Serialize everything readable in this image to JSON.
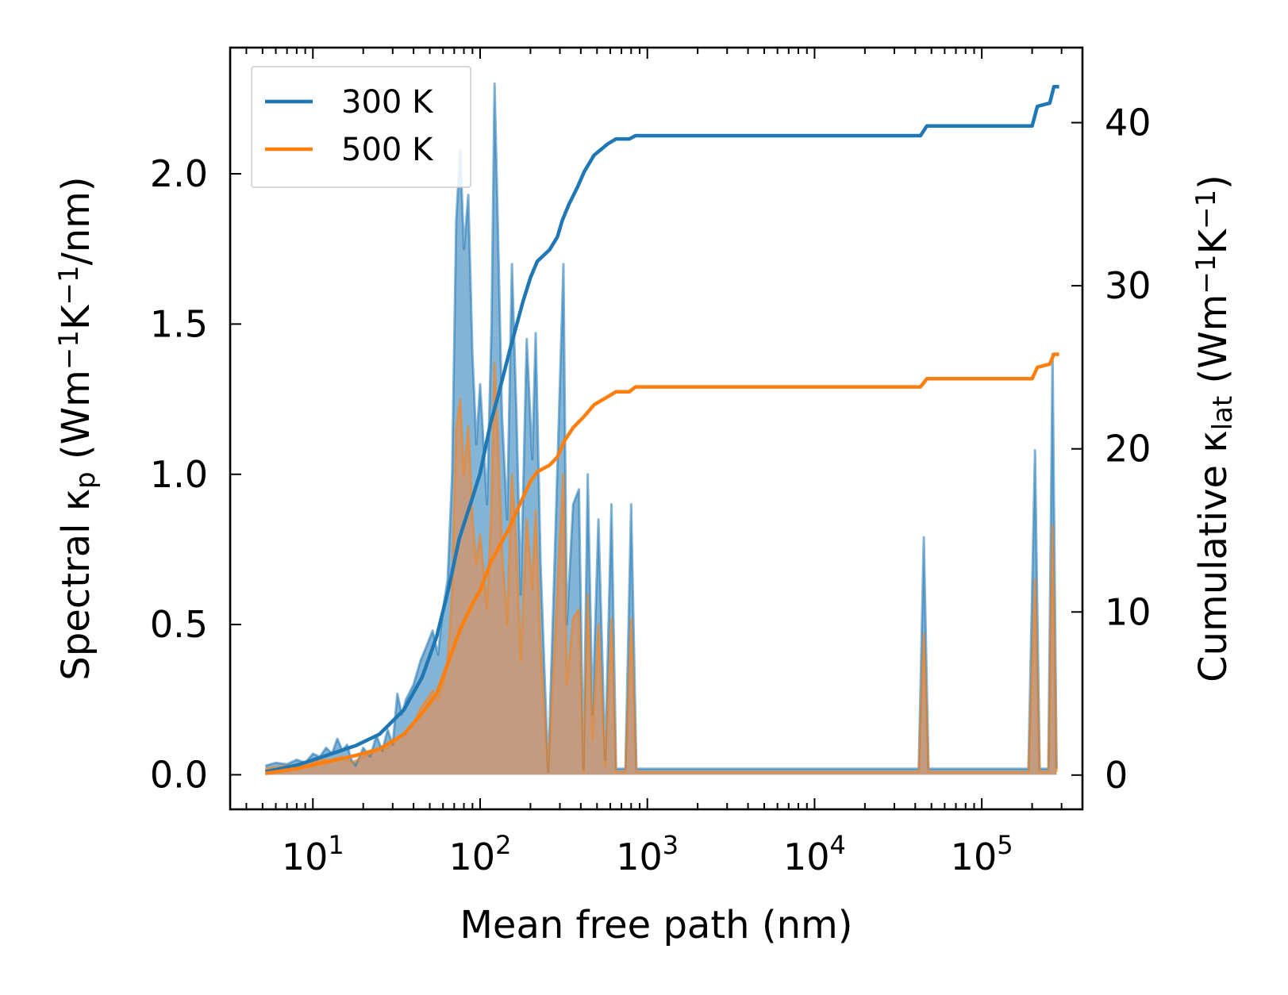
{
  "chart_data": {
    "type": "line",
    "xlabel": "Mean free path (nm)",
    "xscale": "log",
    "xlim": [
      3.2,
      400000
    ],
    "x_ticks": [
      {
        "value": 10,
        "base": "10",
        "exp": "1"
      },
      {
        "value": 100,
        "base": "10",
        "exp": "2"
      },
      {
        "value": 1000,
        "base": "10",
        "exp": "3"
      },
      {
        "value": 10000,
        "base": "10",
        "exp": "4"
      },
      {
        "value": 100000,
        "base": "10",
        "exp": "5"
      }
    ],
    "left_axis": {
      "label_parts": [
        "Spectral κ",
        "p",
        " (Wm",
        "−1",
        "K",
        "−1",
        "/nm)"
      ],
      "ylim": [
        -0.115,
        2.42
      ],
      "ticks": [
        "0.0",
        "0.5",
        "1.0",
        "1.5",
        "2.0"
      ]
    },
    "right_axis": {
      "label_parts": [
        "Cumulative κ",
        "lat",
        " (Wm",
        "−1",
        "K",
        "−1",
        ")"
      ],
      "ylim": [
        -2.1,
        44.6
      ],
      "ticks": [
        "0",
        "10",
        "20",
        "30",
        "40"
      ]
    },
    "legend": {
      "position": "top-left",
      "entries": [
        {
          "label": "300 K",
          "color": "#1f77b4"
        },
        {
          "label": "500 K",
          "color": "#ff7f0e"
        }
      ]
    },
    "series": [
      {
        "name": "300 K",
        "color": "#1f77b4",
        "fill_color": "#1f77b4",
        "axis_spectral": [
          [
            5.2,
            0.03
          ],
          [
            6,
            0.04
          ],
          [
            7,
            0.035
          ],
          [
            8,
            0.05
          ],
          [
            9,
            0.04
          ],
          [
            10,
            0.07
          ],
          [
            11,
            0.06
          ],
          [
            12,
            0.09
          ],
          [
            13,
            0.07
          ],
          [
            14,
            0.12
          ],
          [
            15,
            0.08
          ],
          [
            16,
            0.1
          ],
          [
            17,
            0.05
          ],
          [
            18,
            0.03
          ],
          [
            20,
            0.09
          ],
          [
            22,
            0.06
          ],
          [
            24,
            0.13
          ],
          [
            26,
            0.08
          ],
          [
            28,
            0.15
          ],
          [
            30,
            0.1
          ],
          [
            32,
            0.27
          ],
          [
            34,
            0.2
          ],
          [
            36,
            0.25
          ],
          [
            40,
            0.3
          ],
          [
            44,
            0.38
          ],
          [
            48,
            0.43
          ],
          [
            52,
            0.48
          ],
          [
            56,
            0.4
          ],
          [
            60,
            0.55
          ],
          [
            64,
            0.65
          ],
          [
            68,
            1.0
          ],
          [
            72,
            1.85
          ],
          [
            76,
            2.08
          ],
          [
            80,
            1.75
          ],
          [
            85,
            1.93
          ],
          [
            90,
            1.4
          ],
          [
            95,
            1.1
          ],
          [
            100,
            1.3
          ],
          [
            110,
            0.9
          ],
          [
            117,
            1.5
          ],
          [
            122,
            2.3
          ],
          [
            128,
            1.8
          ],
          [
            135,
            1.2
          ],
          [
            145,
            0.85
          ],
          [
            155,
            1.7
          ],
          [
            165,
            1.2
          ],
          [
            175,
            0.6
          ],
          [
            190,
            1.45
          ],
          [
            205,
            1.05
          ],
          [
            215,
            1.47
          ],
          [
            230,
            0.7
          ],
          [
            255,
            0.01
          ],
          [
            275,
            0.6
          ],
          [
            300,
            1.3
          ],
          [
            315,
            1.7
          ],
          [
            330,
            0.5
          ],
          [
            360,
            0.9
          ],
          [
            390,
            0.95
          ],
          [
            415,
            0.02
          ],
          [
            440,
            1.0
          ],
          [
            470,
            0.2
          ],
          [
            510,
            0.85
          ],
          [
            560,
            0.05
          ],
          [
            610,
            0.9
          ],
          [
            650,
            0.02
          ],
          [
            740,
            0.02
          ],
          [
            800,
            0.9
          ],
          [
            860,
            0.02
          ],
          [
            42000,
            0.02
          ],
          [
            45000,
            0.79
          ],
          [
            48000,
            0.02
          ],
          [
            190000,
            0.02
          ],
          [
            208000,
            1.08
          ],
          [
            222000,
            0.02
          ],
          [
            250000,
            0.02
          ],
          [
            265000,
            1.4
          ],
          [
            280000,
            0.02
          ]
        ],
        "axis_cumulative": [
          [
            5.2,
            0.2
          ],
          [
            8,
            0.6
          ],
          [
            12,
            1.2
          ],
          [
            18,
            1.8
          ],
          [
            25,
            2.5
          ],
          [
            35,
            4
          ],
          [
            45,
            6
          ],
          [
            55,
            8.5
          ],
          [
            65,
            11.5
          ],
          [
            75,
            14.5
          ],
          [
            90,
            17
          ],
          [
            100,
            18.5
          ],
          [
            115,
            21.5
          ],
          [
            130,
            23.5
          ],
          [
            150,
            26
          ],
          [
            180,
            29
          ],
          [
            200,
            30.5
          ],
          [
            220,
            31.5
          ],
          [
            260,
            32.2
          ],
          [
            290,
            33
          ],
          [
            310,
            34
          ],
          [
            340,
            35
          ],
          [
            380,
            36
          ],
          [
            420,
            37
          ],
          [
            480,
            38
          ],
          [
            520,
            38.3
          ],
          [
            580,
            38.7
          ],
          [
            650,
            39
          ],
          [
            780,
            39
          ],
          [
            850,
            39.2
          ],
          [
            43000,
            39.2
          ],
          [
            47000,
            39.8
          ],
          [
            200000,
            39.8
          ],
          [
            215000,
            41
          ],
          [
            255000,
            41.2
          ],
          [
            270000,
            42.2
          ],
          [
            290000,
            42.2
          ]
        ]
      },
      {
        "name": "500 K",
        "color": "#ff7f0e",
        "fill_color": "#d2956a",
        "axis_spectral": [
          [
            5.2,
            0.02
          ],
          [
            7,
            0.03
          ],
          [
            9,
            0.03
          ],
          [
            11,
            0.05
          ],
          [
            13,
            0.05
          ],
          [
            15,
            0.06
          ],
          [
            17,
            0.04
          ],
          [
            20,
            0.06
          ],
          [
            24,
            0.08
          ],
          [
            28,
            0.09
          ],
          [
            32,
            0.12
          ],
          [
            36,
            0.14
          ],
          [
            40,
            0.17
          ],
          [
            44,
            0.22
          ],
          [
            48,
            0.25
          ],
          [
            52,
            0.28
          ],
          [
            56,
            0.25
          ],
          [
            60,
            0.3
          ],
          [
            64,
            0.38
          ],
          [
            68,
            0.6
          ],
          [
            72,
            1.15
          ],
          [
            76,
            1.25
          ],
          [
            80,
            1.0
          ],
          [
            85,
            1.16
          ],
          [
            90,
            0.85
          ],
          [
            95,
            0.7
          ],
          [
            100,
            0.8
          ],
          [
            110,
            0.55
          ],
          [
            117,
            0.9
          ],
          [
            122,
            1.37
          ],
          [
            128,
            1.1
          ],
          [
            135,
            0.75
          ],
          [
            145,
            0.5
          ],
          [
            155,
            1.0
          ],
          [
            165,
            0.75
          ],
          [
            175,
            0.38
          ],
          [
            190,
            0.85
          ],
          [
            205,
            0.62
          ],
          [
            215,
            0.88
          ],
          [
            230,
            0.42
          ],
          [
            255,
            0.01
          ],
          [
            275,
            0.36
          ],
          [
            300,
            0.78
          ],
          [
            315,
            1.0
          ],
          [
            330,
            0.3
          ],
          [
            360,
            0.52
          ],
          [
            390,
            0.55
          ],
          [
            415,
            0.01
          ],
          [
            440,
            0.6
          ],
          [
            470,
            0.12
          ],
          [
            510,
            0.5
          ],
          [
            560,
            0.03
          ],
          [
            610,
            0.52
          ],
          [
            650,
            0.01
          ],
          [
            740,
            0.01
          ],
          [
            800,
            0.52
          ],
          [
            860,
            0.01
          ],
          [
            42000,
            0.01
          ],
          [
            45000,
            0.47
          ],
          [
            48000,
            0.01
          ],
          [
            190000,
            0.01
          ],
          [
            208000,
            0.65
          ],
          [
            222000,
            0.01
          ],
          [
            250000,
            0.01
          ],
          [
            265000,
            0.83
          ],
          [
            280000,
            0.01
          ]
        ],
        "axis_cumulative": [
          [
            5.2,
            0.1
          ],
          [
            8,
            0.4
          ],
          [
            12,
            0.8
          ],
          [
            18,
            1.2
          ],
          [
            25,
            1.6
          ],
          [
            35,
            2.5
          ],
          [
            45,
            3.8
          ],
          [
            55,
            5
          ],
          [
            65,
            7
          ],
          [
            75,
            8.8
          ],
          [
            90,
            10.5
          ],
          [
            100,
            11.3
          ],
          [
            115,
            13
          ],
          [
            130,
            14
          ],
          [
            150,
            15.2
          ],
          [
            180,
            17
          ],
          [
            200,
            18
          ],
          [
            220,
            18.6
          ],
          [
            260,
            19
          ],
          [
            290,
            19.5
          ],
          [
            320,
            20.5
          ],
          [
            360,
            21.3
          ],
          [
            420,
            22
          ],
          [
            480,
            22.7
          ],
          [
            580,
            23.2
          ],
          [
            650,
            23.5
          ],
          [
            780,
            23.5
          ],
          [
            850,
            23.8
          ],
          [
            43000,
            23.8
          ],
          [
            47000,
            24.3
          ],
          [
            200000,
            24.3
          ],
          [
            215000,
            25
          ],
          [
            255000,
            25.2
          ],
          [
            270000,
            25.8
          ],
          [
            290000,
            25.8
          ]
        ]
      }
    ]
  }
}
